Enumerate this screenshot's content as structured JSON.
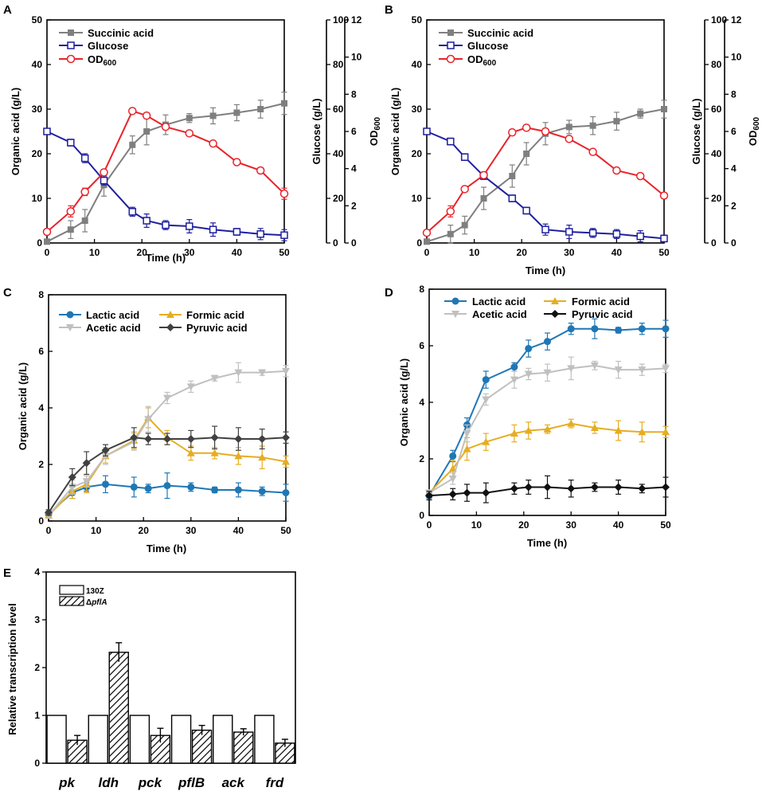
{
  "chart_data": [
    {
      "panel": "A",
      "type": "line",
      "xlabel": "Time (h)",
      "ylabel": "Organic acid (g/L)",
      "ylabel_right1": "Glucose (g/L)",
      "ylabel_right2": "OD",
      "ylabel_right2_sub": "600",
      "xlim": [
        0,
        50
      ],
      "ylim": [
        0,
        50
      ],
      "ylim_right1": [
        0,
        100
      ],
      "ylim_right2": [
        0,
        12
      ],
      "xticks": [
        0,
        10,
        20,
        30,
        40,
        50
      ],
      "yticks": [
        0,
        10,
        20,
        30,
        40,
        50
      ],
      "yticks_right1": [
        0,
        20,
        40,
        60,
        80,
        100
      ],
      "yticks_right2": [
        0,
        2,
        4,
        6,
        8,
        10,
        12
      ],
      "legend_position": "top-left",
      "series": [
        {
          "name": "Succinic acid",
          "axis": "left",
          "color": "#7f7f7f",
          "marker": "square-filled",
          "x": [
            0,
            5,
            8,
            12,
            18,
            21,
            25,
            30,
            35,
            40,
            45,
            50
          ],
          "values": [
            0.3,
            3,
            5,
            13,
            22,
            25,
            26.5,
            28,
            28.5,
            29.2,
            30,
            31.3
          ],
          "errors": [
            0.3,
            2,
            2.5,
            2.5,
            2,
            3,
            2.2,
            1,
            1.8,
            1.8,
            2,
            2.5
          ]
        },
        {
          "name": "Glucose",
          "axis": "right1",
          "color": "#1f1f9f",
          "marker": "square-open",
          "x": [
            0,
            5,
            8,
            12,
            18,
            21,
            25,
            30,
            35,
            40,
            45,
            50
          ],
          "values": [
            50,
            45,
            38,
            28,
            14,
            10,
            8,
            7.5,
            6,
            5,
            4,
            3.5
          ],
          "errors": [
            1,
            1.5,
            2,
            2,
            2,
            3,
            2,
            3,
            3,
            1.5,
            2.5,
            2.5
          ]
        },
        {
          "name": "OD",
          "name_sub": "600",
          "axis": "right2",
          "color": "#e8232a",
          "marker": "circle-open",
          "x": [
            0,
            5,
            8,
            12,
            18,
            21,
            25,
            30,
            35,
            40,
            45,
            50
          ],
          "values": [
            0.6,
            1.7,
            2.75,
            3.8,
            7.1,
            6.85,
            6.25,
            5.9,
            5.35,
            4.35,
            3.9,
            2.65
          ],
          "errors": [
            0.1,
            0.3,
            0.2,
            0.15,
            0.15,
            0.15,
            0.15,
            0.15,
            0.15,
            0.15,
            0.15,
            0.3
          ]
        }
      ]
    },
    {
      "panel": "B",
      "type": "line",
      "xlabel": "Time (h)",
      "ylabel": "Organic acid (g/L)",
      "ylabel_right1": "Glucose (g/L)",
      "ylabel_right2": "OD",
      "ylabel_right2_sub": "600",
      "xlim": [
        0,
        50
      ],
      "ylim": [
        0,
        50
      ],
      "ylim_right1": [
        0,
        100
      ],
      "ylim_right2": [
        0,
        12
      ],
      "xticks": [
        0,
        10,
        20,
        30,
        40,
        50
      ],
      "yticks": [
        0,
        10,
        20,
        30,
        40,
        50
      ],
      "yticks_right1": [
        0,
        20,
        40,
        60,
        80,
        100
      ],
      "yticks_right2": [
        0,
        2,
        4,
        6,
        8,
        10,
        12
      ],
      "legend_position": "top-left",
      "series": [
        {
          "name": "Succinic acid",
          "axis": "left",
          "color": "#7f7f7f",
          "marker": "square-filled",
          "x": [
            0,
            5,
            8,
            12,
            18,
            21,
            25,
            30,
            35,
            40,
            45,
            50
          ],
          "values": [
            0.3,
            2,
            4,
            10,
            15,
            20,
            24.5,
            26,
            26.3,
            27.3,
            29,
            30
          ],
          "errors": [
            0.3,
            2,
            2,
            2.5,
            2.5,
            2.5,
            2.5,
            1.5,
            2,
            2,
            1,
            2
          ]
        },
        {
          "name": "Glucose",
          "axis": "right1",
          "color": "#1f1f9f",
          "marker": "square-open",
          "x": [
            0,
            5,
            8,
            12,
            18,
            21,
            25,
            30,
            35,
            40,
            45,
            50
          ],
          "values": [
            50,
            45.5,
            38.5,
            30,
            20,
            14.5,
            6,
            5,
            4.5,
            4,
            3,
            2
          ],
          "errors": [
            1,
            1.5,
            1.5,
            1.5,
            1.5,
            1.5,
            2.5,
            3,
            2,
            2,
            2.5,
            1.5
          ]
        },
        {
          "name": "OD",
          "name_sub": "600",
          "axis": "right2",
          "color": "#e8232a",
          "marker": "circle-open",
          "x": [
            0,
            5,
            8,
            12,
            18,
            21,
            25,
            30,
            35,
            40,
            45,
            50
          ],
          "values": [
            0.55,
            1.7,
            2.9,
            3.65,
            5.95,
            6.2,
            6.0,
            5.6,
            4.9,
            3.9,
            3.6,
            2.55
          ],
          "errors": [
            0.1,
            0.3,
            0.15,
            0.15,
            0.15,
            0.15,
            0.15,
            0.15,
            0.15,
            0.15,
            0.15,
            0.15
          ]
        }
      ]
    },
    {
      "panel": "C",
      "type": "line",
      "xlabel": "Time (h)",
      "ylabel": "Organic acid (g/L)",
      "xlim": [
        0,
        50
      ],
      "ylim": [
        0,
        8
      ],
      "xticks": [
        0,
        10,
        20,
        30,
        40,
        50
      ],
      "yticks": [
        0,
        2,
        4,
        6,
        8
      ],
      "legend_position": "top",
      "series": [
        {
          "name": "Lactic acid",
          "color": "#1f77b4",
          "marker": "circle",
          "x": [
            0,
            5,
            8,
            12,
            18,
            21,
            25,
            30,
            35,
            40,
            45,
            50
          ],
          "values": [
            0.25,
            1.0,
            1.2,
            1.3,
            1.2,
            1.15,
            1.25,
            1.2,
            1.1,
            1.1,
            1.05,
            1.0
          ],
          "errors": [
            0.1,
            0.2,
            0.15,
            0.3,
            0.35,
            0.15,
            0.45,
            0.15,
            0.1,
            0.25,
            0.15,
            0.3
          ]
        },
        {
          "name": "Formic acid",
          "color": "#e6ad22",
          "marker": "triangle",
          "x": [
            0,
            5,
            8,
            12,
            18,
            21,
            25,
            30,
            35,
            40,
            45,
            50
          ],
          "values": [
            0.2,
            1.05,
            1.3,
            2.3,
            2.85,
            3.65,
            2.95,
            2.4,
            2.4,
            2.3,
            2.25,
            2.1
          ],
          "errors": [
            0.1,
            0.25,
            0.3,
            0.25,
            0.3,
            0.35,
            0.25,
            0.25,
            0.2,
            0.3,
            0.4,
            0.2
          ]
        },
        {
          "name": "Acetic acid",
          "color": "#c0c0c0",
          "marker": "triangle-down",
          "x": [
            0,
            5,
            8,
            12,
            18,
            21,
            25,
            30,
            35,
            40,
            45,
            50
          ],
          "values": [
            0.2,
            1.2,
            1.4,
            2.3,
            2.8,
            3.6,
            4.35,
            4.75,
            5.05,
            5.25,
            5.25,
            5.3
          ],
          "errors": [
            0.1,
            0.25,
            0.2,
            0.3,
            0.3,
            0.45,
            0.2,
            0.2,
            0.1,
            0.35,
            0.1,
            0.2
          ]
        },
        {
          "name": "Pyruvic acid",
          "color": "#404040",
          "marker": "diamond",
          "x": [
            0,
            5,
            8,
            12,
            18,
            21,
            25,
            30,
            35,
            40,
            45,
            50
          ],
          "values": [
            0.3,
            1.55,
            2.05,
            2.5,
            2.95,
            2.9,
            2.9,
            2.9,
            2.95,
            2.9,
            2.9,
            2.95
          ],
          "errors": [
            0.1,
            0.3,
            0.4,
            0.2,
            0.35,
            0.2,
            0.2,
            0.3,
            0.4,
            0.4,
            0.35,
            0.2
          ]
        }
      ]
    },
    {
      "panel": "D",
      "type": "line",
      "xlabel": "Time (h)",
      "ylabel": "Organic acid (g/L)",
      "xlim": [
        0,
        50
      ],
      "ylim": [
        0,
        8
      ],
      "xticks": [
        0,
        10,
        20,
        30,
        40,
        50
      ],
      "yticks": [
        0,
        2,
        4,
        6,
        8
      ],
      "legend_position": "top",
      "series": [
        {
          "name": "Lactic acid",
          "color": "#1f77b4",
          "marker": "circle",
          "x": [
            0,
            5,
            8,
            12,
            18,
            21,
            25,
            30,
            35,
            40,
            45,
            50
          ],
          "values": [
            0.7,
            2.1,
            3.2,
            4.8,
            5.25,
            5.9,
            6.15,
            6.6,
            6.6,
            6.55,
            6.6,
            6.6
          ],
          "errors": [
            0.1,
            0.2,
            0.25,
            0.3,
            0.15,
            0.3,
            0.3,
            0.2,
            0.35,
            0.1,
            0.2,
            0.3
          ]
        },
        {
          "name": "Formic acid",
          "color": "#e6ad22",
          "marker": "triangle",
          "x": [
            0,
            5,
            8,
            12,
            18,
            21,
            25,
            30,
            35,
            40,
            45,
            50
          ],
          "values": [
            0.8,
            1.65,
            2.35,
            2.6,
            2.9,
            3.0,
            3.05,
            3.25,
            3.1,
            3.0,
            2.95,
            2.95
          ],
          "errors": [
            0.1,
            0.3,
            0.4,
            0.3,
            0.3,
            0.3,
            0.15,
            0.15,
            0.2,
            0.35,
            0.35,
            0.2
          ]
        },
        {
          "name": "Acetic acid",
          "color": "#c0c0c0",
          "marker": "triangle-down",
          "x": [
            0,
            5,
            8,
            12,
            18,
            21,
            25,
            30,
            35,
            40,
            45,
            50
          ],
          "values": [
            0.8,
            1.3,
            2.9,
            4.1,
            4.8,
            5.0,
            5.05,
            5.2,
            5.3,
            5.15,
            5.15,
            5.2
          ],
          "errors": [
            0.1,
            0.2,
            0.3,
            0.2,
            0.3,
            0.2,
            0.3,
            0.4,
            0.15,
            0.3,
            0.2,
            0.15
          ]
        },
        {
          "name": "Pyruvic acid",
          "color": "#111111",
          "marker": "diamond",
          "x": [
            0,
            5,
            8,
            12,
            18,
            21,
            25,
            30,
            35,
            40,
            45,
            50
          ],
          "values": [
            0.7,
            0.75,
            0.8,
            0.8,
            0.95,
            1.0,
            1.0,
            0.95,
            1.0,
            1.0,
            0.95,
            1.0
          ],
          "errors": [
            0.15,
            0.2,
            0.3,
            0.35,
            0.2,
            0.25,
            0.4,
            0.3,
            0.15,
            0.25,
            0.15,
            0.35
          ]
        }
      ]
    },
    {
      "panel": "E",
      "type": "bar",
      "xlabel": "",
      "ylabel": "Relative transcription level",
      "ylim": [
        0,
        4
      ],
      "yticks": [
        0,
        1,
        2,
        3,
        4
      ],
      "categories": [
        "pk",
        "ldh",
        "pck",
        "pflB",
        "ack",
        "frd"
      ],
      "legend_position": "top-left",
      "series": [
        {
          "name": "130Z",
          "fill": "open",
          "values": [
            1,
            1,
            1,
            1,
            1,
            1
          ],
          "errors": [
            0,
            0,
            0,
            0,
            0,
            0
          ]
        },
        {
          "name": "Δ",
          "name_italic": "pflA",
          "fill": "hatched",
          "values": [
            0.48,
            2.32,
            0.58,
            0.69,
            0.65,
            0.42
          ],
          "errors": [
            0.1,
            0.2,
            0.15,
            0.1,
            0.07,
            0.08
          ]
        }
      ]
    }
  ]
}
